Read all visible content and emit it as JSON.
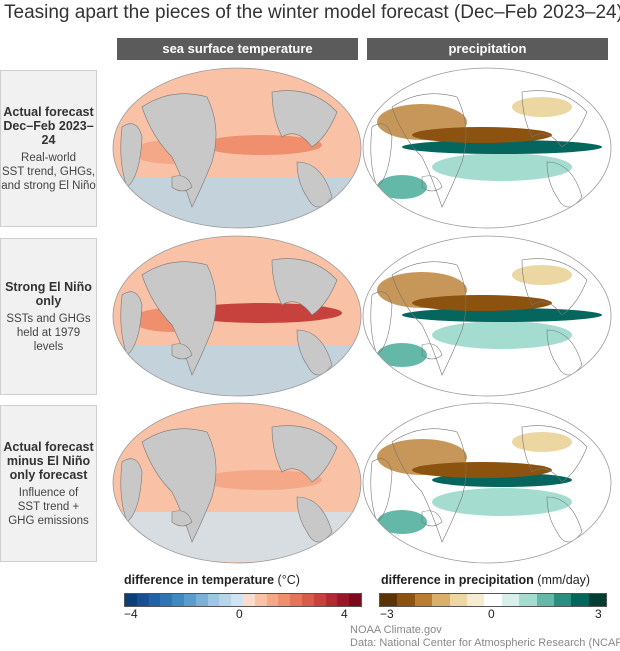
{
  "title": "Teasing apart the pieces of the winter model forecast (Dec–Feb 2023–24)",
  "columns": [
    "sea surface temperature",
    "precipitation"
  ],
  "rows": [
    {
      "title": [
        "Actual forecast",
        "Dec–Feb 2023–24"
      ],
      "subtitle": [
        "Real-world",
        "SST trend, GHGs,",
        "and strong El Niño"
      ]
    },
    {
      "title": [
        "Strong El Niño",
        "only"
      ],
      "subtitle": [
        "SSTs and GHGs",
        "held at 1979 levels"
      ]
    },
    {
      "title": [
        "Actual forecast",
        "minus El Niño",
        "only forecast"
      ],
      "subtitle": [
        "Influence of",
        "SST trend +",
        "GHG emissions"
      ]
    }
  ],
  "temperature_colorbar": {
    "label_bold": "difference in temperature",
    "unit": "(°C)",
    "ticks": [
      "−4",
      "0",
      "4"
    ],
    "colors": [
      "#0c3f78",
      "#174f93",
      "#2262a8",
      "#3074b4",
      "#3f88c0",
      "#5a9ccb",
      "#7cb1d7",
      "#9cc6e2",
      "#b7d6ea",
      "#cfe3f0",
      "#fcdccb",
      "#f9c2a6",
      "#f5a887",
      "#ef8f6d",
      "#e47558",
      "#d85c4a",
      "#c7423c",
      "#b32a32",
      "#9b1628",
      "#7c0a1e"
    ]
  },
  "precipitation_colorbar": {
    "label_bold": "difference in precipitation",
    "unit": "(mm/day)",
    "ticks": [
      "−3",
      "0",
      "3"
    ],
    "colors": [
      "#5a3406",
      "#8c520f",
      "#b97d2f",
      "#d8b06b",
      "#ecd7a2",
      "#f6ecd2",
      "#ffffff",
      "#d8efea",
      "#a5dcd0",
      "#63b8a8",
      "#2a8d80",
      "#05665e",
      "#033d33"
    ]
  },
  "credits": [
    "NOAA Climate.gov",
    "Data: National Center for Atmospheric Research (NCAR)"
  ],
  "colors": {
    "land": "#c8c8c8",
    "header": "#5b5b5b",
    "warm": "#f4a582",
    "cool": "#a8cde6",
    "wet": "#2a8d80",
    "dry": "#a0651e"
  }
}
